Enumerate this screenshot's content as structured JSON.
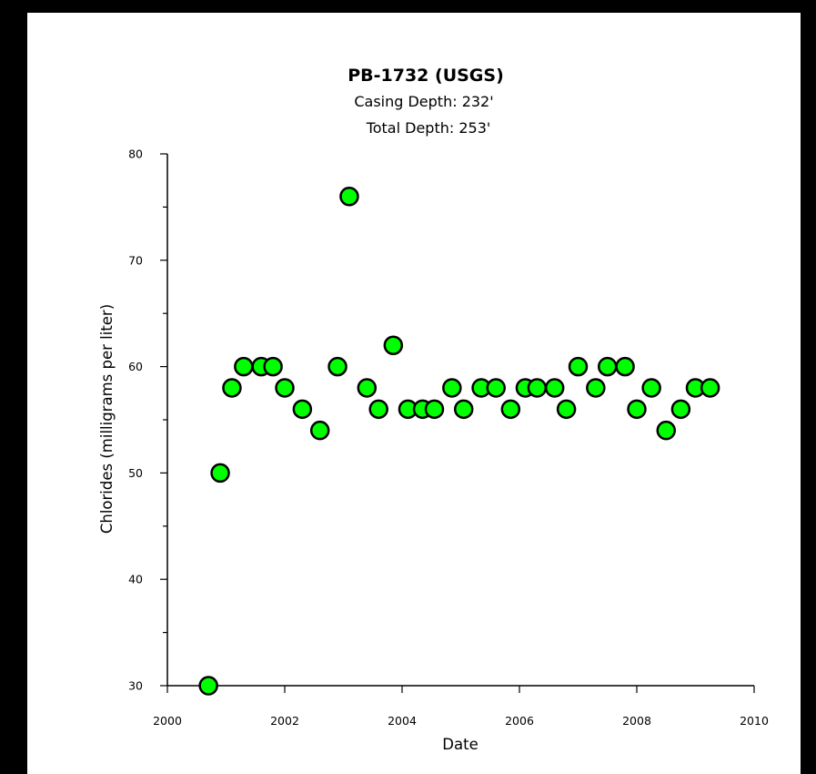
{
  "chart_data": {
    "type": "scatter",
    "title": "PB-1732 (USGS)",
    "subtitle_lines": [
      "Casing Depth:  232'",
      "Total Depth:  253'"
    ],
    "xlabel": "Date",
    "ylabel": "Chlorides (milligrams per liter)",
    "xlim": [
      2000,
      2010
    ],
    "ylim": [
      30,
      80
    ],
    "x_ticks": [
      2000,
      2002,
      2004,
      2006,
      2008,
      2010
    ],
    "y_ticks": [
      30,
      40,
      50,
      60,
      70,
      80
    ],
    "grid": false,
    "marker_color": "#00ff00",
    "marker_edge_color": "#000000",
    "series": [
      {
        "x": [
          2000.7,
          2000.9,
          2001.1,
          2001.3,
          2001.6,
          2001.8,
          2002.0,
          2002.3,
          2002.6,
          2002.9,
          2003.1,
          2003.4,
          2003.6,
          2003.85,
          2004.1,
          2004.35,
          2004.55,
          2004.85,
          2005.05,
          2005.35,
          2005.6,
          2005.85,
          2006.1,
          2006.3,
          2006.6,
          2006.8,
          2007.0,
          2007.3,
          2007.5,
          2007.8,
          2008.0,
          2008.25,
          2008.5,
          2008.75,
          2009.0,
          2009.25
        ],
        "y": [
          30,
          50,
          58,
          60,
          60,
          60,
          58,
          56,
          54,
          60,
          76,
          58,
          56,
          62,
          56,
          56,
          56,
          58,
          56,
          58,
          58,
          56,
          58,
          58,
          58,
          56,
          60,
          58,
          60,
          60,
          56,
          58,
          54,
          56,
          58,
          58
        ]
      }
    ]
  }
}
